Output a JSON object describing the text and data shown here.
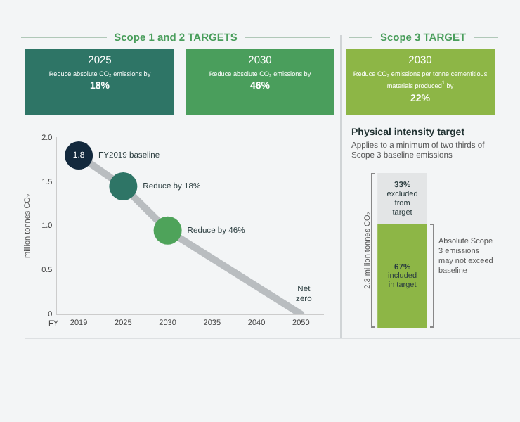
{
  "chart_data": [
    {
      "type": "line",
      "xlabel": "FY",
      "ylabel": "million tonnes CO₂",
      "categories": [
        "2019",
        "2025",
        "2030",
        "2035",
        "2040",
        "2050"
      ],
      "series": [
        {
          "color": "#b9bdc0",
          "colors": [
            "#13293d",
            "#2e7566",
            "#4ea35a",
            null,
            null,
            null
          ],
          "values": [
            1.8,
            1.45,
            0.95,
            null,
            null,
            0
          ],
          "value_labels": [
            "1.8",
            null,
            null,
            null,
            null,
            null
          ]
        }
      ],
      "ylim": [
        0,
        2
      ],
      "yticks": [
        0,
        0.5,
        {
          "value": 1,
          "label": "1.0"
        },
        {
          "value": 1.5,
          "label": "1.5"
        },
        {
          "value": 2,
          "label": "2.0"
        }
      ],
      "grid": false,
      "legend": false,
      "marker": "circle",
      "annotations": [
        "Scope 1 and 2 TARGETS",
        "2025",
        "Reduce absolute CO₂ emissions by",
        "18%",
        "2030",
        "Reduce absolute CO₂ emissions by",
        "46%",
        {
          "text": "FY2019 baseline",
          "x": "2019",
          "y": 1.8
        },
        {
          "text": "Reduce by 18%",
          "x": "2025",
          "y": 1.45
        },
        {
          "text": "Reduce by 46%",
          "x": "2030",
          "y": 0.95
        },
        {
          "text": "Net zero",
          "x": "2050",
          "y": 0
        }
      ]
    },
    {
      "type": "bar",
      "stacked": true,
      "title": "Physical intensity target",
      "subtitle": "Applies to a minimum of two thirds of Scope 3 baseline emissions",
      "ylabel": "2.3 million tonnes CO₂",
      "categories": [
        null
      ],
      "series": [
        {
          "name": "included in target",
          "color": "#8db646",
          "values": [
            67
          ],
          "value_labels": [
            "67%"
          ]
        },
        {
          "name": "excluded from target",
          "color": "#e3e5e6",
          "values": [
            33
          ],
          "value_labels": [
            "33%"
          ]
        }
      ],
      "ylim": [
        0,
        100
      ],
      "tick_labels": false,
      "legend": false,
      "annotations": [
        "Scope 3 TARGET",
        "2030",
        "Reduce CO₂ emissions per tonne cementitious materials produced$^{1}$ by",
        "22%",
        "Absolute Scope 3 emissions may not exceed baseline"
      ]
    }
  ]
}
